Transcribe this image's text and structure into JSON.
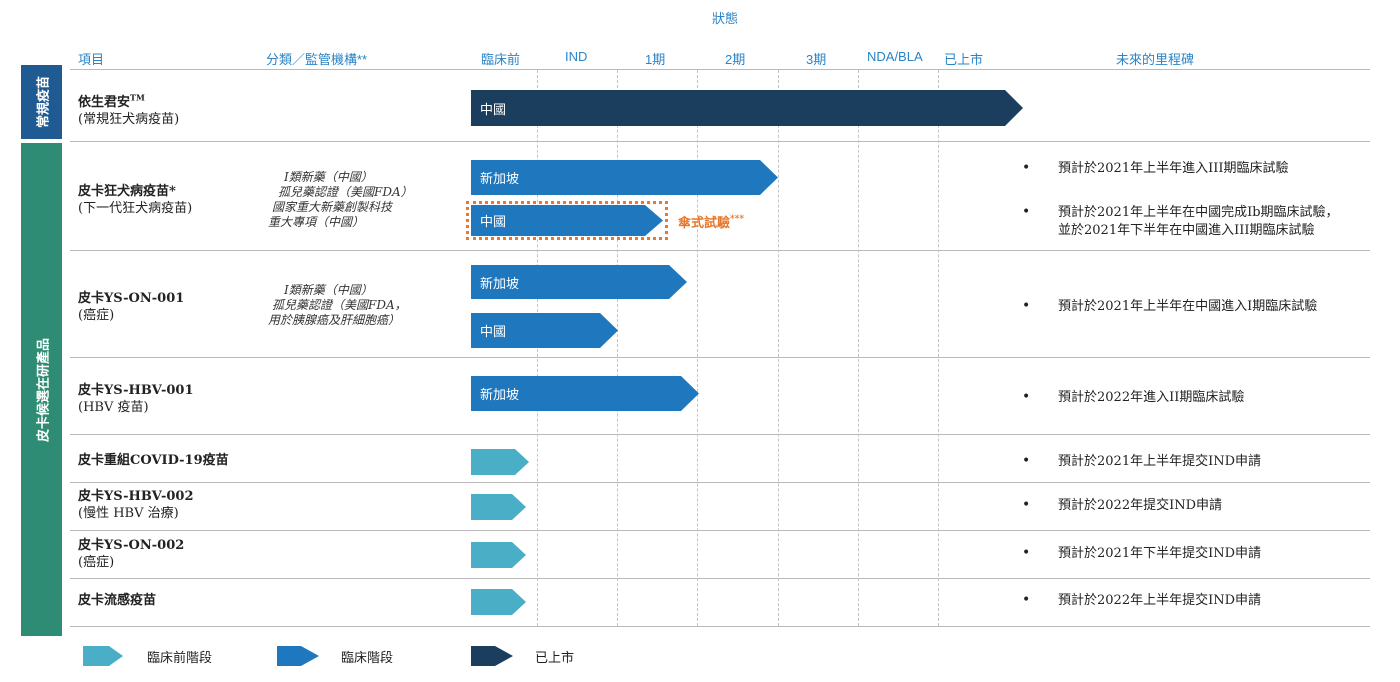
{
  "header": {
    "status_title": "狀態",
    "columns": {
      "project": "項目",
      "category": "分類／監管機構**",
      "preclinical": "臨床前",
      "ind": "IND",
      "phase1": "1期",
      "phase2": "2期",
      "phase3": "3期",
      "nda_bla": "NDA/BLA",
      "launched": "已上市",
      "milestones": "未來的里程碑"
    }
  },
  "categories": {
    "routine": "常規疫苗",
    "candidates": "皮卡候選在研產品"
  },
  "products": [
    {
      "name_main": "依生君安",
      "name_mark": "TM",
      "subtitle": "(常規狂犬病疫苗)",
      "bars": [
        {
          "label": "中國",
          "stage": "launched"
        }
      ]
    },
    {
      "name_main": "皮卡狂犬病疫苗*",
      "subtitle": "(下一代狂犬病疫苗)",
      "regulatory": [
        "I類新藥（中國）",
        "孤兒藥認證（美國FDA）",
        "國家重大新藥創製科技",
        "重大專項（中國）"
      ],
      "bars": [
        {
          "label": "新加坡",
          "stage": "phase2"
        },
        {
          "label": "中國",
          "stage": "phase1"
        }
      ],
      "umbrella_note": "傘式試驗",
      "umbrella_mark": "***",
      "milestones": [
        "預計於2021年上半年進入III期臨床試驗",
        "預計於2021年上半年在中國完成Ib期臨床試驗，",
        "並於2021年下半年在中國進入III期臨床試驗"
      ]
    },
    {
      "name_main": "皮卡YS-ON-001",
      "subtitle": "(癌症)",
      "regulatory": [
        "I類新藥（中國）",
        "孤兒藥認證（美國FDA，",
        "用於胰腺癌及肝細胞癌）"
      ],
      "bars": [
        {
          "label": "新加坡",
          "stage": "phase1"
        },
        {
          "label": "中國",
          "stage": "ind"
        }
      ],
      "milestones": [
        "預計於2021年上半年在中國進入I期臨床試驗"
      ]
    },
    {
      "name_main": "皮卡YS-HBV-001",
      "subtitle": "(HBV 疫苗)",
      "bars": [
        {
          "label": "新加坡",
          "stage": "phase1"
        }
      ],
      "milestones": [
        "預計於2022年進入II期臨床試驗"
      ]
    },
    {
      "name_main": "皮卡重組COVID-19疫苗",
      "milestones": [
        "預計於2021年上半年提交IND申請"
      ]
    },
    {
      "name_main": "皮卡YS-HBV-002",
      "subtitle": "(慢性 HBV 治療)",
      "milestones": [
        "預計於2022年提交IND申請"
      ]
    },
    {
      "name_main": "皮卡YS-ON-002",
      "subtitle": "(癌症)",
      "milestones": [
        "預計於2021年下半年提交IND申請"
      ]
    },
    {
      "name_main": "皮卡流感疫苗",
      "milestones": [
        "預計於2022年上半年提交IND申請"
      ]
    }
  ],
  "legend": {
    "preclinical": "臨床前階段",
    "clinical": "臨床階段",
    "launched": "已上市"
  },
  "colors": {
    "header_text": "#2a84c6",
    "launched": "#1c3e5e",
    "clinical": "#1f77bd",
    "preclinical": "#4aaec6",
    "category_routine": "#1f5a93",
    "category_candidates": "#2f8c74",
    "umbrella": "#e7782c"
  }
}
